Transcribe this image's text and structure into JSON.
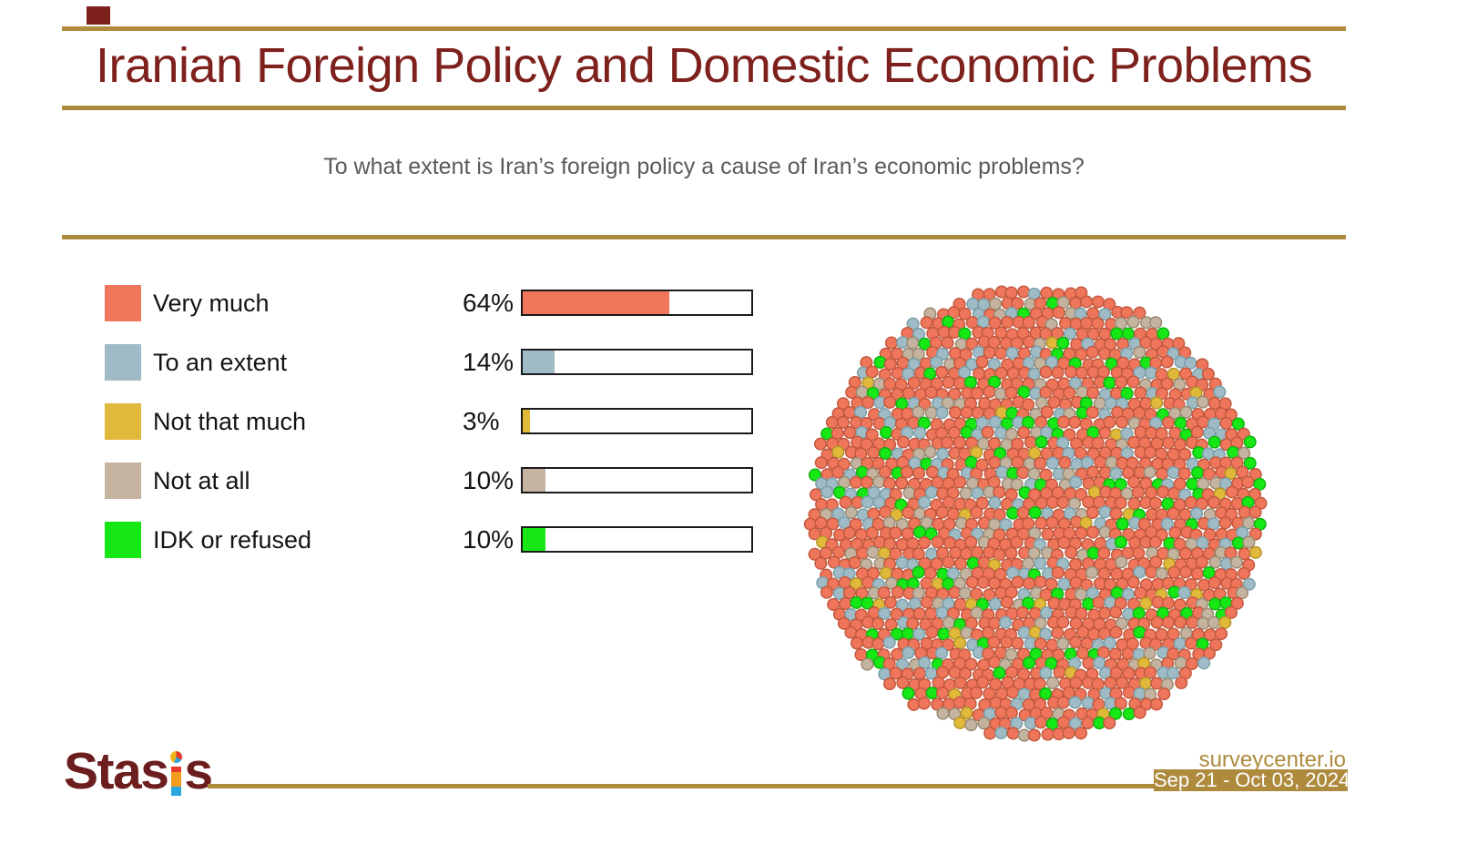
{
  "header": {
    "title": "Iranian Foreign Policy and Domestic Economic Problems"
  },
  "question": "To what extent is Iran’s foreign policy a cause of Iran’s economic problems?",
  "chart_data": {
    "type": "bar",
    "title": "Iranian Foreign Policy and Domestic Economic Problems",
    "subtitle": "To what extent is Iran’s foreign policy a cause of Iran’s economic problems?",
    "categories": [
      "Very much",
      "To an extent",
      "Not that much",
      "Not at all",
      "IDK or refused"
    ],
    "values": [
      64,
      14,
      3,
      10,
      10
    ],
    "pct_labels": [
      "64%",
      "14%",
      "3%",
      "10%",
      "10%"
    ],
    "unit": "percent",
    "xlim": [
      0,
      100
    ],
    "legend_position": "left",
    "colors": [
      "#F0765B",
      "#9FBCC6",
      "#E0B93B",
      "#C4B39F",
      "#15E815"
    ],
    "dot_border_colors": [
      "#C2593F",
      "#7C9FA9",
      "#B8952A",
      "#9B8A72",
      "#12B212"
    ],
    "companion_visual": "packed dot circle colored by the same five-category distribution"
  },
  "style_colors": {
    "accent_gold": "#AE8A3D",
    "title_maroon": "#7E211D",
    "text_dark": "#141414",
    "text_gray": "#5A5A5A"
  },
  "footer": {
    "brand_prefix": "Stas",
    "brand_suffix": "s",
    "brand": "Stasis",
    "source": "surveycenter.io",
    "date_range": "Sep 21 - Oct 03, 2024"
  }
}
